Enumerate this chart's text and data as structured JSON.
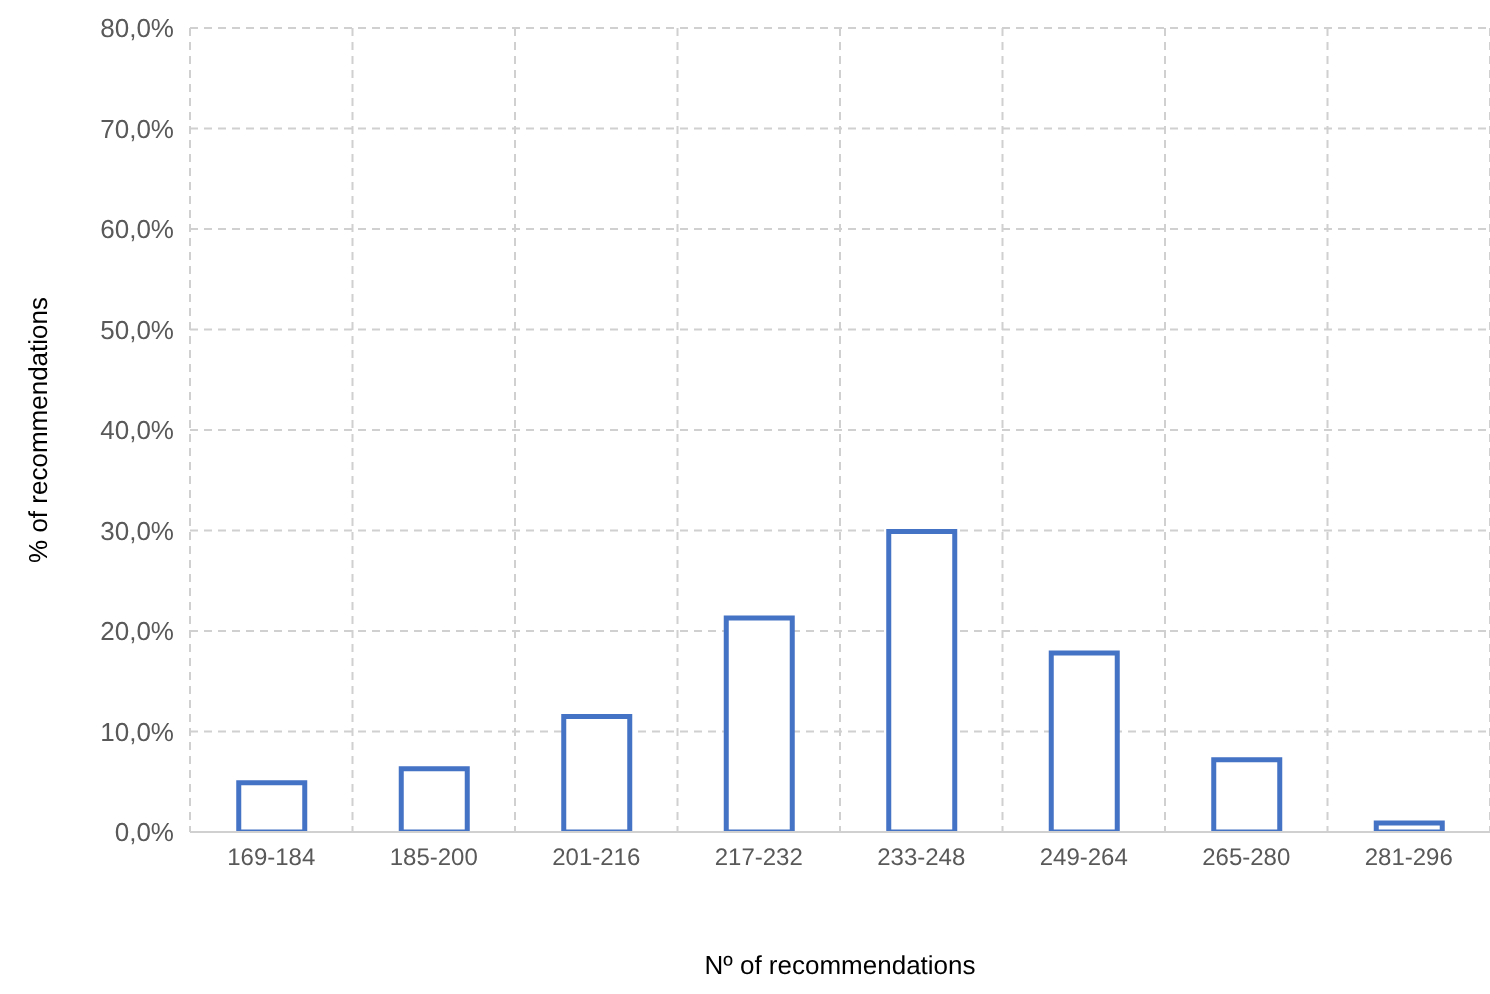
{
  "chart_data": {
    "type": "bar",
    "xlabel": "Nº of recommendations",
    "ylabel": "% of recommendations",
    "categories": [
      "169-184",
      "185-200",
      "201-216",
      "217-232",
      "233-248",
      "249-264",
      "265-280",
      "281-296"
    ],
    "values": [
      4.9,
      6.3,
      11.5,
      21.3,
      29.9,
      17.8,
      7.2,
      0.9
    ],
    "color": "#4472c4",
    "ylim": [
      0,
      80
    ],
    "yticks": [
      {
        "value": 0,
        "label": "0,0%"
      },
      {
        "value": 10,
        "label": "10,0%"
      },
      {
        "value": 20,
        "label": "20,0%"
      },
      {
        "value": 30,
        "label": "30,0%"
      },
      {
        "value": 40,
        "label": "40,0%"
      },
      {
        "value": 50,
        "label": "50,0%"
      },
      {
        "value": 60,
        "label": "60,0%"
      },
      {
        "value": 70,
        "label": "70,0%"
      },
      {
        "value": 80,
        "label": "80,0%"
      }
    ],
    "grid": true
  }
}
